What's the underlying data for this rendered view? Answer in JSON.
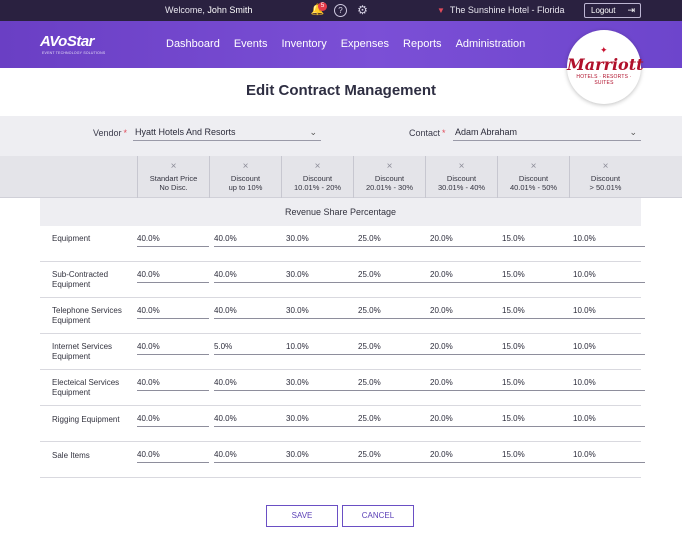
{
  "topbar": {
    "welcome_prefix": "Welcome,",
    "user_name": "John Smith",
    "notification_count": "5",
    "hotel_name": "The Sunshine Hotel - Florida",
    "logout_label": "Logout"
  },
  "nav": {
    "logo_text": "AVoStar",
    "logo_tagline": "EVENT TECHNOLOGY SOLUTIONS",
    "items": [
      "Dashboard",
      "Events",
      "Inventory",
      "Expenses",
      "Reports",
      "Administration"
    ]
  },
  "brand": {
    "name": "Marriott",
    "sub": "HOTELS · RESORTS · SUITES"
  },
  "page_title": "Edit Contract Management",
  "filters": {
    "vendor_label": "Vendor",
    "vendor_value": "Hyatt Hotels And Resorts",
    "contact_label": "Contact",
    "contact_value": "Adam Abraham",
    "required_mark": "*"
  },
  "discount_columns": [
    {
      "line1": "Standart Price",
      "line2": "No Disc."
    },
    {
      "line1": "Discount",
      "line2": "up to 10%"
    },
    {
      "line1": "Discount",
      "line2": "10.01% - 20%"
    },
    {
      "line1": "Discount",
      "line2": "20.01% - 30%"
    },
    {
      "line1": "Discount",
      "line2": "30.01% - 40%"
    },
    {
      "line1": "Discount",
      "line2": "40.01% - 50%"
    },
    {
      "line1": "Discount",
      "line2": "> 50.01%"
    }
  ],
  "revenue_header": "Revenue Share Percentage",
  "rows": [
    {
      "label1": "Equipment",
      "label2": "",
      "values": [
        "40.0%",
        "40.0%",
        "30.0%",
        "25.0%",
        "20.0%",
        "15.0%",
        "10.0%"
      ]
    },
    {
      "label1": "Sub-Contracted",
      "label2": "Equipment",
      "values": [
        "40.0%",
        "40.0%",
        "30.0%",
        "25.0%",
        "20.0%",
        "15.0%",
        "10.0%"
      ]
    },
    {
      "label1": "Telephone Services",
      "label2": "Equipment",
      "values": [
        "40.0%",
        "40.0%",
        "30.0%",
        "25.0%",
        "20.0%",
        "15.0%",
        "10.0%"
      ]
    },
    {
      "label1": "Internet Services",
      "label2": "Equipment",
      "values": [
        "40.0%",
        "5.0%",
        "10.0%",
        "25.0%",
        "20.0%",
        "15.0%",
        "10.0%"
      ]
    },
    {
      "label1": "Electeical Services",
      "label2": "Equipment",
      "values": [
        "40.0%",
        "40.0%",
        "30.0%",
        "25.0%",
        "20.0%",
        "15.0%",
        "10.0%"
      ]
    },
    {
      "label1": "Rigging Equipment",
      "label2": "",
      "values": [
        "40.0%",
        "40.0%",
        "30.0%",
        "25.0%",
        "20.0%",
        "15.0%",
        "10.0%"
      ]
    },
    {
      "label1": "Sale Items",
      "label2": "",
      "values": [
        "40.0%",
        "40.0%",
        "30.0%",
        "25.0%",
        "20.0%",
        "15.0%",
        "10.0%"
      ]
    }
  ],
  "actions": {
    "save_label": "SAVE",
    "cancel_label": "CANCEL"
  },
  "colors": {
    "topbar": "#2a2140",
    "nav": "#7b4fd6",
    "accent": "#6a4fc4",
    "required": "#e14b5a",
    "brand": "#b0102b"
  },
  "icons": [
    "bell-icon",
    "help-icon",
    "gear-icon",
    "caret-down-icon",
    "logout-icon",
    "close-icon",
    "chevron-down-icon"
  ]
}
